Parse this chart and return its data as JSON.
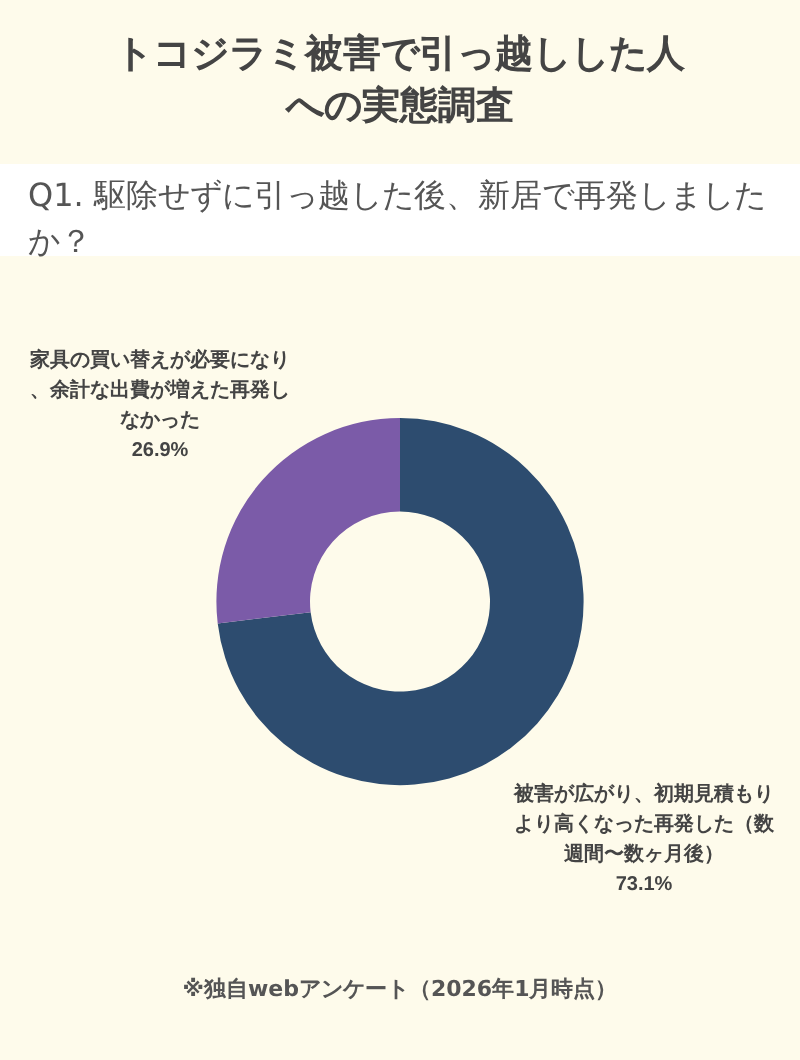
{
  "chart_data": {
    "type": "donut",
    "title": "トコジラミ被害で引っ越しした人への実態調査",
    "subtitle": "Q1. 駆除せずに引っ越した後、新居で再発しましたか？",
    "categories": [
      "被害が広がり、初期見積もりより高くなった再発した（数週間〜数ヶ月後）",
      "家具の買い替えが必要になり、余計な出費が増えた再発しなかった"
    ],
    "values": [
      73.1,
      26.9
    ],
    "colors": [
      "#2d4c6f",
      "#7b5ba8"
    ],
    "value_labels": [
      "73.1%",
      "26.9%"
    ],
    "legend": false,
    "annotations": [
      "※独自webアンケート（2026年1月時点）"
    ]
  }
}
